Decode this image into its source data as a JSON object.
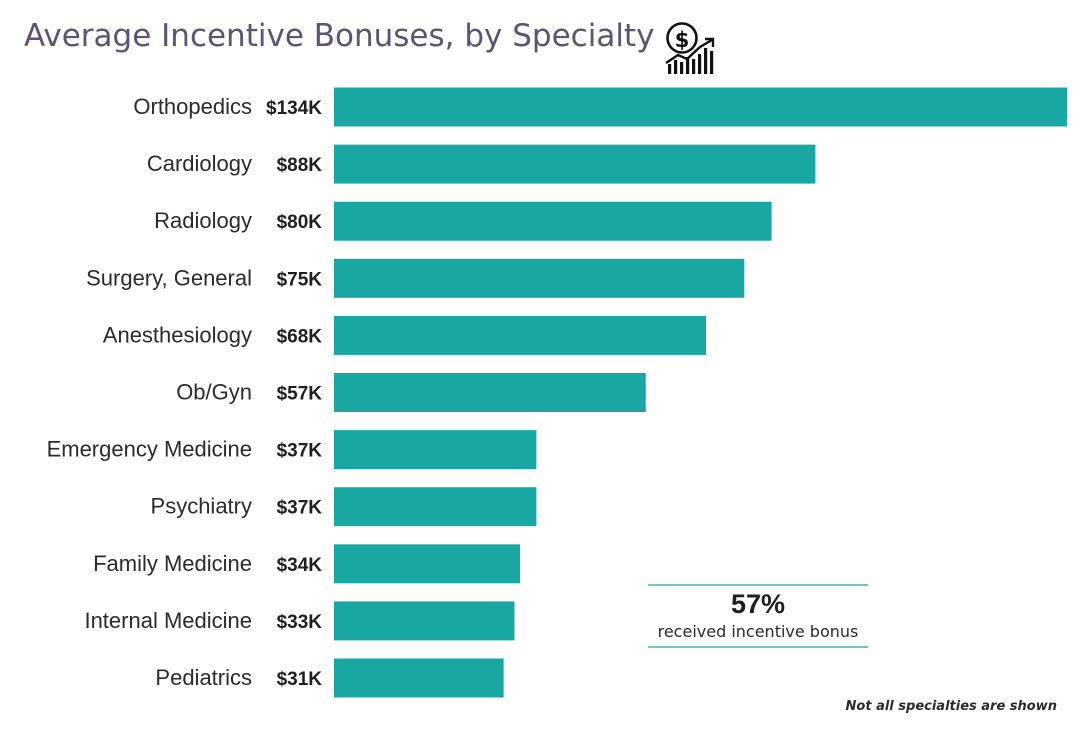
{
  "chart_data": {
    "type": "bar",
    "orientation": "horizontal",
    "title": "Average Incentive Bonuses, by Specialty",
    "title_icon": "dollar-growth-chart-icon",
    "categories": [
      "Orthopedics",
      "Cardiology",
      "Radiology",
      "Surgery, General",
      "Anesthesiology",
      "Ob/Gyn",
      "Emergency Medicine",
      "Psychiatry",
      "Family Medicine",
      "Internal Medicine",
      "Pediatrics"
    ],
    "values": [
      134,
      88,
      80,
      75,
      68,
      57,
      37,
      37,
      34,
      33,
      31
    ],
    "value_labels": [
      "$134K",
      "$88K",
      "$80K",
      "$75K",
      "$68K",
      "$57K",
      "$37K",
      "$37K",
      "$34K",
      "$33K",
      "$31K"
    ],
    "value_unit": "$K",
    "bar_color": "#19a7a3",
    "grid": false,
    "legend": "none"
  },
  "callout": {
    "value": "57%",
    "text": "received incentive bonus"
  },
  "footnote": "Not all specialties are shown"
}
